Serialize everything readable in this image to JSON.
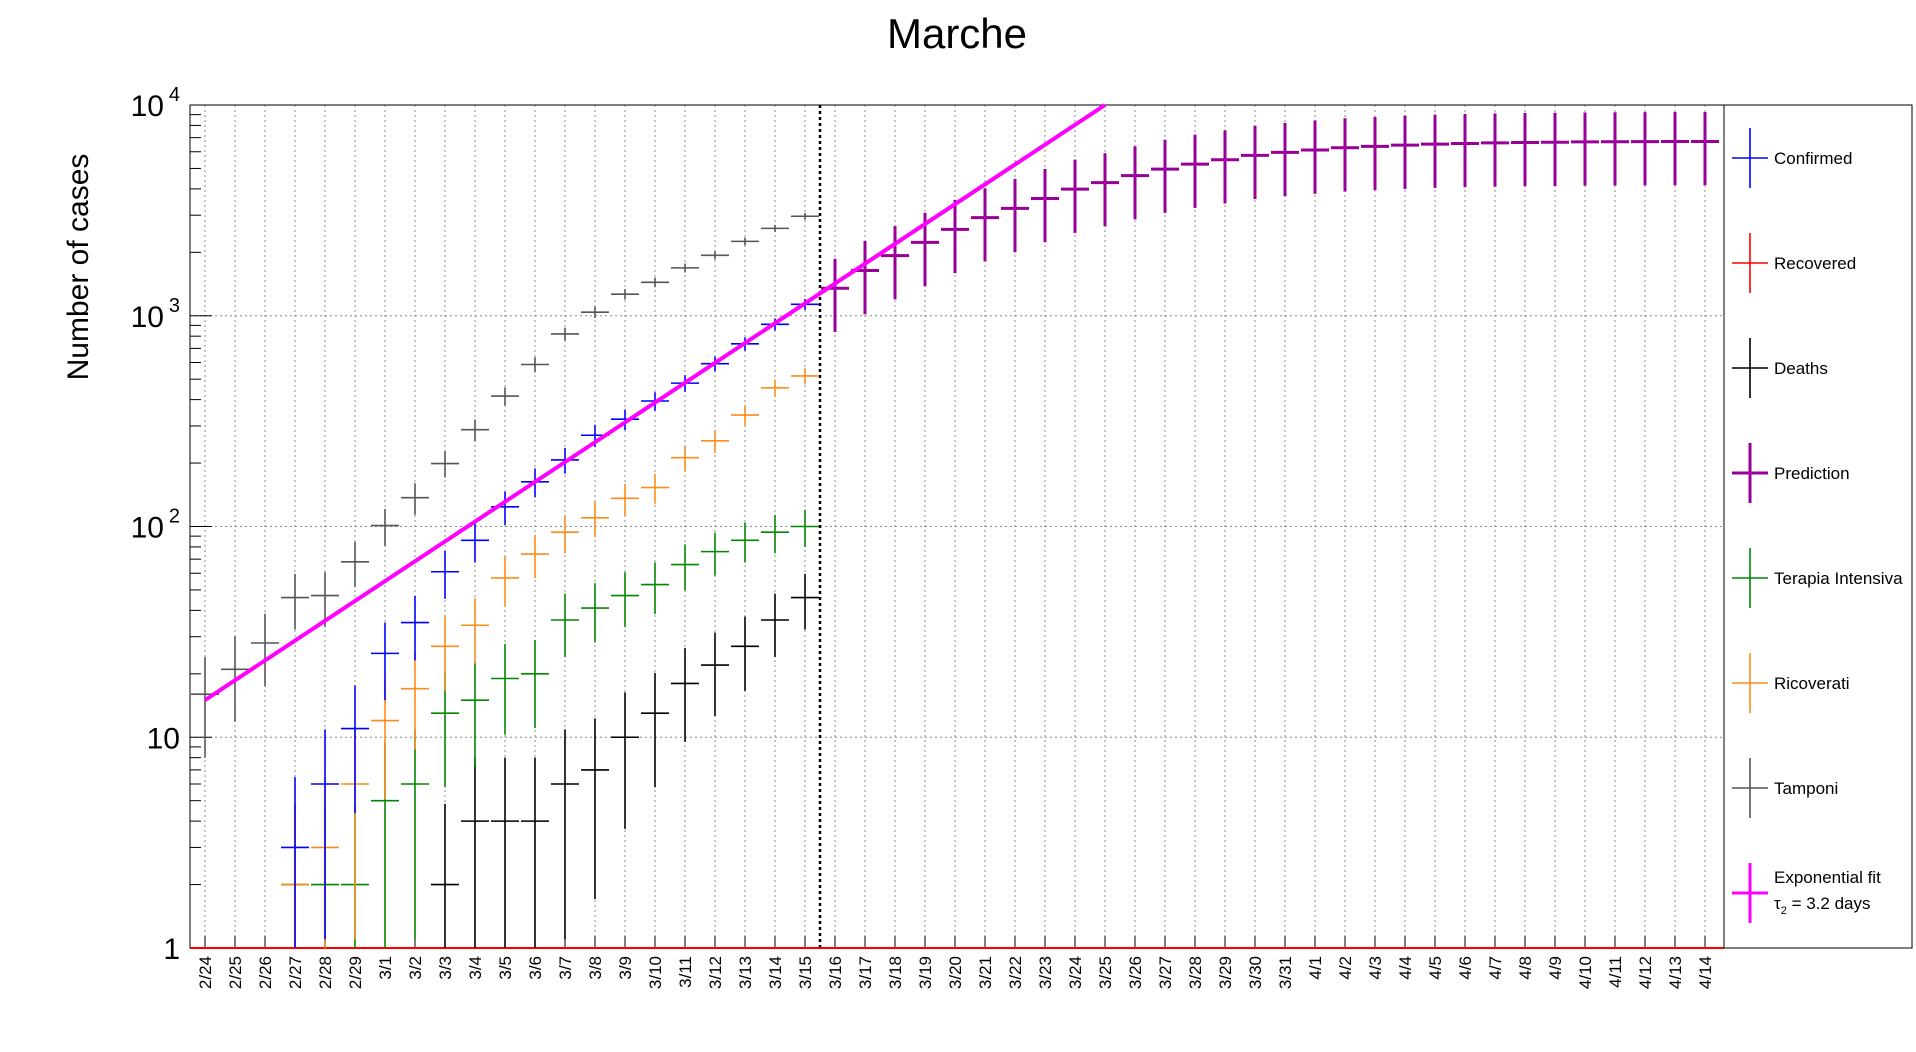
{
  "chart_data": {
    "type": "scatter",
    "title": "Marche",
    "xlabel": "",
    "ylabel": "Number of cases",
    "y_scale": "log",
    "ylim": [
      1,
      10000
    ],
    "y_ticks": [
      {
        "value": 1,
        "base": "1",
        "exp": ""
      },
      {
        "value": 10,
        "base": "10",
        "exp": ""
      },
      {
        "value": 100,
        "base": "10",
        "exp": "2"
      },
      {
        "value": 1000,
        "base": "10",
        "exp": "3"
      },
      {
        "value": 10000,
        "base": "10",
        "exp": "4"
      }
    ],
    "grid": true,
    "legend_position": "right",
    "categories": [
      "2/24",
      "2/25",
      "2/26",
      "2/27",
      "2/28",
      "2/29",
      "3/1",
      "3/2",
      "3/3",
      "3/4",
      "3/5",
      "3/6",
      "3/7",
      "3/8",
      "3/9",
      "3/10",
      "3/11",
      "3/12",
      "3/13",
      "3/14",
      "3/15",
      "3/16",
      "3/17",
      "3/18",
      "3/19",
      "3/20",
      "3/21",
      "3/22",
      "3/23",
      "3/24",
      "3/25",
      "3/26",
      "3/27",
      "3/28",
      "3/29",
      "3/30",
      "3/31",
      "4/1",
      "4/2",
      "4/3",
      "4/4",
      "4/5",
      "4/6",
      "4/7",
      "4/8",
      "4/9",
      "4/10",
      "4/11",
      "4/12",
      "4/13",
      "4/14"
    ],
    "marker": {
      "date": "3/15"
    },
    "series": [
      {
        "name": "Confirmed",
        "color": "#0000ff",
        "points": [
          {
            "x": "2/27",
            "y": 3
          },
          {
            "x": "2/28",
            "y": 6
          },
          {
            "x": "2/29",
            "y": 11
          },
          {
            "x": "3/1",
            "y": 25
          },
          {
            "x": "3/2",
            "y": 35
          },
          {
            "x": "3/3",
            "y": 61
          },
          {
            "x": "3/4",
            "y": 86
          },
          {
            "x": "3/5",
            "y": 124
          },
          {
            "x": "3/6",
            "y": 163
          },
          {
            "x": "3/7",
            "y": 207
          },
          {
            "x": "3/8",
            "y": 271
          },
          {
            "x": "3/9",
            "y": 323
          },
          {
            "x": "3/10",
            "y": 394
          },
          {
            "x": "3/11",
            "y": 479
          },
          {
            "x": "3/12",
            "y": 592
          },
          {
            "x": "3/13",
            "y": 736
          },
          {
            "x": "3/14",
            "y": 911
          },
          {
            "x": "3/15",
            "y": 1133
          }
        ]
      },
      {
        "name": "Recovered",
        "color": "#ff0000",
        "points": []
      },
      {
        "name": "Deaths",
        "color": "#000000",
        "points": [
          {
            "x": "3/3",
            "y": 2
          },
          {
            "x": "3/4",
            "y": 4
          },
          {
            "x": "3/5",
            "y": 4
          },
          {
            "x": "3/6",
            "y": 4
          },
          {
            "x": "3/7",
            "y": 6
          },
          {
            "x": "3/8",
            "y": 7
          },
          {
            "x": "3/9",
            "y": 10
          },
          {
            "x": "3/10",
            "y": 13
          },
          {
            "x": "3/11",
            "y": 18
          },
          {
            "x": "3/12",
            "y": 22
          },
          {
            "x": "3/13",
            "y": 27
          },
          {
            "x": "3/14",
            "y": 36
          },
          {
            "x": "3/15",
            "y": 46
          }
        ]
      },
      {
        "name": "Prediction",
        "color": "#990099",
        "points": [
          {
            "x": "3/16",
            "y": 1350
          },
          {
            "x": "3/17",
            "y": 1640
          },
          {
            "x": "3/18",
            "y": 1930
          },
          {
            "x": "3/19",
            "y": 2230
          },
          {
            "x": "3/20",
            "y": 2570
          },
          {
            "x": "3/21",
            "y": 2920
          },
          {
            "x": "3/22",
            "y": 3230
          },
          {
            "x": "3/23",
            "y": 3600
          },
          {
            "x": "3/24",
            "y": 3990
          },
          {
            "x": "3/25",
            "y": 4280
          },
          {
            "x": "3/26",
            "y": 4620
          },
          {
            "x": "3/27",
            "y": 4960
          },
          {
            "x": "3/28",
            "y": 5240
          },
          {
            "x": "3/29",
            "y": 5500
          },
          {
            "x": "3/30",
            "y": 5770
          },
          {
            "x": "3/31",
            "y": 5960
          },
          {
            "x": "4/1",
            "y": 6120
          },
          {
            "x": "4/2",
            "y": 6270
          },
          {
            "x": "4/3",
            "y": 6360
          },
          {
            "x": "4/4",
            "y": 6450
          },
          {
            "x": "4/5",
            "y": 6520
          },
          {
            "x": "4/6",
            "y": 6570
          },
          {
            "x": "4/7",
            "y": 6610
          },
          {
            "x": "4/8",
            "y": 6640
          },
          {
            "x": "4/9",
            "y": 6660
          },
          {
            "x": "4/10",
            "y": 6680
          },
          {
            "x": "4/11",
            "y": 6690
          },
          {
            "x": "4/12",
            "y": 6700
          },
          {
            "x": "4/13",
            "y": 6710
          },
          {
            "x": "4/14",
            "y": 6710
          }
        ]
      },
      {
        "name": "Terapia Intensiva",
        "color": "#008800",
        "points": [
          {
            "x": "2/27",
            "y": 2
          },
          {
            "x": "2/28",
            "y": 2
          },
          {
            "x": "2/29",
            "y": 2
          },
          {
            "x": "3/1",
            "y": 5
          },
          {
            "x": "3/2",
            "y": 6
          },
          {
            "x": "3/3",
            "y": 13
          },
          {
            "x": "3/4",
            "y": 15
          },
          {
            "x": "3/5",
            "y": 19
          },
          {
            "x": "3/6",
            "y": 20
          },
          {
            "x": "3/7",
            "y": 36
          },
          {
            "x": "3/8",
            "y": 41
          },
          {
            "x": "3/9",
            "y": 47
          },
          {
            "x": "3/10",
            "y": 53
          },
          {
            "x": "3/11",
            "y": 66
          },
          {
            "x": "3/12",
            "y": 76
          },
          {
            "x": "3/13",
            "y": 86
          },
          {
            "x": "3/14",
            "y": 94
          },
          {
            "x": "3/15",
            "y": 100
          }
        ]
      },
      {
        "name": "Ricoverati",
        "color": "#ff8c1a",
        "points": [
          {
            "x": "2/27",
            "y": 2
          },
          {
            "x": "2/28",
            "y": 3
          },
          {
            "x": "2/29",
            "y": 6
          },
          {
            "x": "3/1",
            "y": 12
          },
          {
            "x": "3/2",
            "y": 17
          },
          {
            "x": "3/3",
            "y": 27
          },
          {
            "x": "3/4",
            "y": 34
          },
          {
            "x": "3/5",
            "y": 57
          },
          {
            "x": "3/6",
            "y": 74
          },
          {
            "x": "3/7",
            "y": 94
          },
          {
            "x": "3/8",
            "y": 110
          },
          {
            "x": "3/9",
            "y": 136
          },
          {
            "x": "3/10",
            "y": 153
          },
          {
            "x": "3/11",
            "y": 212
          },
          {
            "x": "3/12",
            "y": 255
          },
          {
            "x": "3/13",
            "y": 338
          },
          {
            "x": "3/14",
            "y": 455
          },
          {
            "x": "3/15",
            "y": 518
          }
        ]
      },
      {
        "name": "Tamponi",
        "color": "#555555",
        "points": [
          {
            "x": "2/24",
            "y": 16
          },
          {
            "x": "2/25",
            "y": 21
          },
          {
            "x": "2/26",
            "y": 28
          },
          {
            "x": "2/27",
            "y": 46
          },
          {
            "x": "2/28",
            "y": 47
          },
          {
            "x": "2/29",
            "y": 68
          },
          {
            "x": "3/1",
            "y": 101
          },
          {
            "x": "3/2",
            "y": 137
          },
          {
            "x": "3/3",
            "y": 199
          },
          {
            "x": "3/4",
            "y": 288
          },
          {
            "x": "3/5",
            "y": 416
          },
          {
            "x": "3/6",
            "y": 587
          },
          {
            "x": "3/7",
            "y": 820
          },
          {
            "x": "3/8",
            "y": 1040
          },
          {
            "x": "3/9",
            "y": 1266
          },
          {
            "x": "3/10",
            "y": 1441
          },
          {
            "x": "3/11",
            "y": 1687
          },
          {
            "x": "3/12",
            "y": 1936
          },
          {
            "x": "3/13",
            "y": 2254
          },
          {
            "x": "3/14",
            "y": 2598
          },
          {
            "x": "3/15",
            "y": 2966
          }
        ]
      }
    ],
    "fit": {
      "name": "Exponential fit",
      "label_prefix": "τ",
      "label_sub": "2",
      "label_suffix": " = 3.2 days",
      "color": "#ff00ff",
      "start": {
        "x": "2/24",
        "y": 15
      },
      "end_x": "3/25",
      "end_y": 10000
    }
  }
}
